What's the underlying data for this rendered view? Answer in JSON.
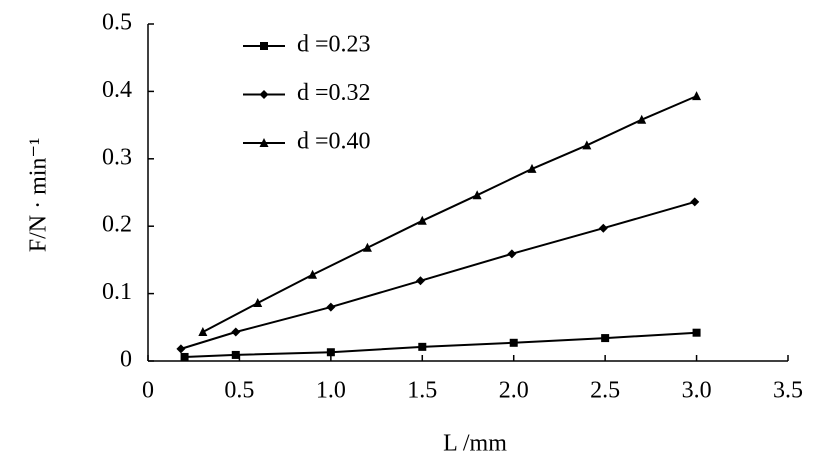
{
  "chart_data": {
    "type": "line",
    "xlabel": "L /mm",
    "ylabel": "F/N · min⁻¹",
    "xlim": [
      0,
      3.5
    ],
    "ylim": [
      0,
      0.5
    ],
    "xticks": [
      0,
      0.5,
      {
        "value": 1,
        "label": "1.0"
      },
      1.5,
      {
        "value": 2,
        "label": "2.0"
      },
      2.5,
      {
        "value": 3,
        "label": "3.0"
      },
      3.5
    ],
    "yticks": [
      0,
      0.1,
      0.2,
      0.3,
      0.4,
      0.5
    ],
    "legend": "upper left",
    "series": [
      {
        "name": "d =0.23",
        "color": "#000000",
        "marker": "square",
        "x": [
          0.2,
          0.48,
          1.0,
          1.5,
          2.0,
          2.5,
          3.0
        ],
        "values": [
          0.006,
          0.009,
          0.013,
          0.021,
          0.027,
          0.034,
          0.042
        ]
      },
      {
        "name": "d =0.32",
        "color": "#000000",
        "marker": "diamond",
        "x": [
          0.18,
          0.48,
          1.0,
          1.49,
          1.99,
          2.49,
          2.99
        ],
        "values": [
          0.018,
          0.043,
          0.08,
          0.119,
          0.159,
          0.197,
          0.236
        ]
      },
      {
        "name": "d =0.40",
        "color": "#000000",
        "marker": "triangle",
        "x": [
          0.3,
          0.6,
          0.9,
          1.2,
          1.5,
          1.8,
          2.1,
          2.4,
          2.7,
          3.0
        ],
        "values": [
          0.043,
          0.086,
          0.128,
          0.168,
          0.208,
          0.246,
          0.285,
          0.32,
          0.358,
          0.393
        ]
      }
    ]
  }
}
